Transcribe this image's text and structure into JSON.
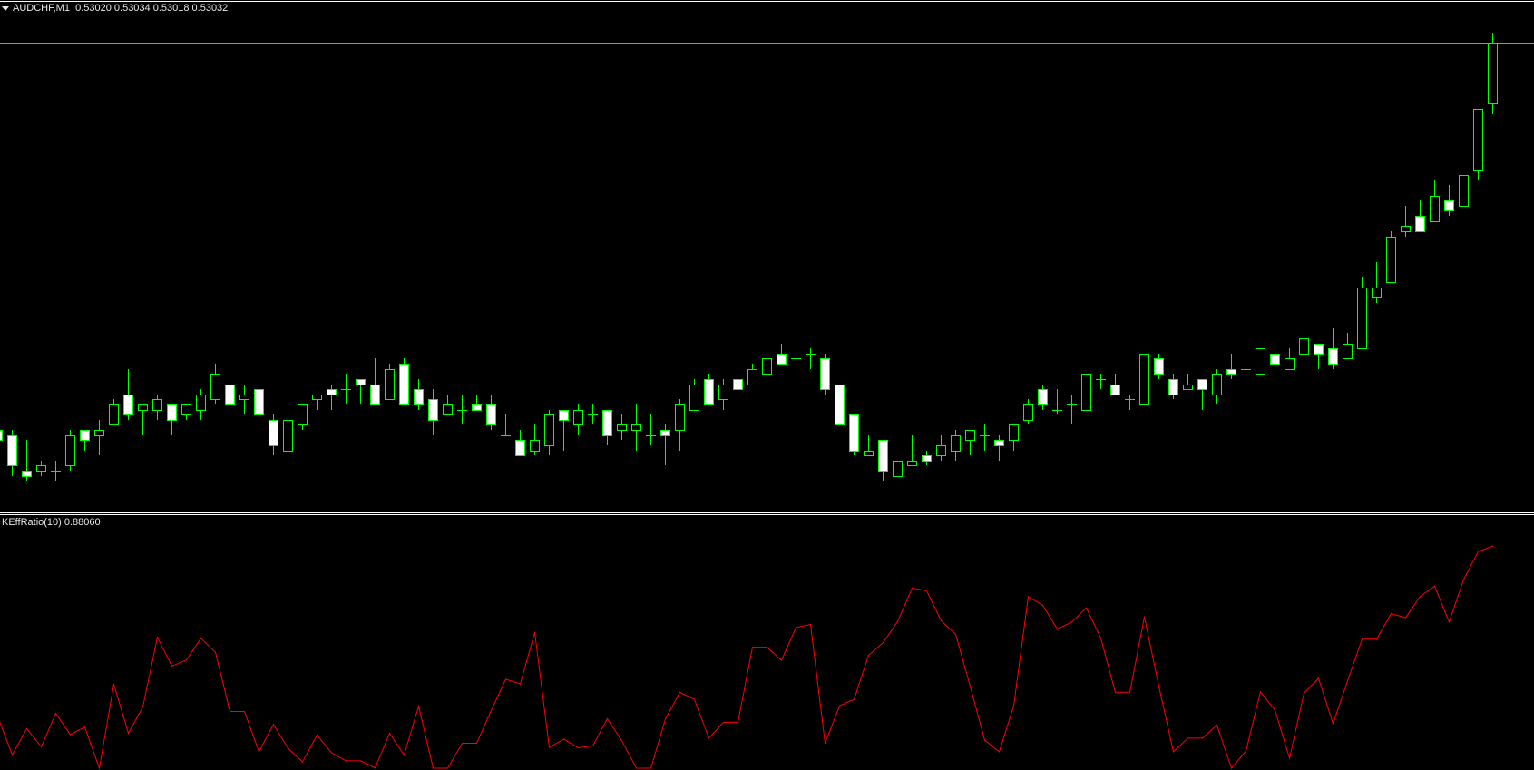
{
  "header": {
    "symbol": "AUDCHF,M1",
    "ohlc_text": "0.53020 0.53034 0.53018 0.53032"
  },
  "indicator": {
    "label": "KEffRatio(10) 0.88060"
  },
  "colors": {
    "background": "#000000",
    "candle_outline": "#00ff00",
    "bear_fill": "#ffffff",
    "bull_fill": "#000000",
    "bid_line": "#8c96a0",
    "indicator_line": "#ff0000",
    "separator": "#ffffff"
  },
  "chart_data": [
    {
      "type": "candlestick",
      "symbol": "AUDCHF",
      "timeframe": "M1",
      "ylim": [
        0.5294,
        0.5304
      ],
      "bid": 0.53032,
      "grid": false,
      "candles_ohlc": [
        [
          0.52956,
          0.52956,
          0.52954,
          0.52954
        ],
        [
          0.52955,
          0.52956,
          0.52947,
          0.52949
        ],
        [
          0.52948,
          0.52954,
          0.52946,
          0.52947
        ],
        [
          0.52948,
          0.5295,
          0.52947,
          0.52949
        ],
        [
          0.52948,
          0.5295,
          0.52946,
          0.52948
        ],
        [
          0.52949,
          0.52956,
          0.52948,
          0.52955
        ],
        [
          0.52956,
          0.52956,
          0.52952,
          0.52954
        ],
        [
          0.52955,
          0.52958,
          0.52951,
          0.52956
        ],
        [
          0.52957,
          0.52962,
          0.52957,
          0.52961
        ],
        [
          0.52963,
          0.52968,
          0.52958,
          0.52959
        ],
        [
          0.5296,
          0.52961,
          0.52955,
          0.52961
        ],
        [
          0.5296,
          0.52963,
          0.52958,
          0.52962
        ],
        [
          0.52961,
          0.52961,
          0.52955,
          0.52958
        ],
        [
          0.52959,
          0.52961,
          0.52958,
          0.52961
        ],
        [
          0.5296,
          0.52964,
          0.52958,
          0.52963
        ],
        [
          0.52962,
          0.52969,
          0.52961,
          0.52967
        ],
        [
          0.52965,
          0.52966,
          0.52961,
          0.52961
        ],
        [
          0.52962,
          0.52965,
          0.52959,
          0.52963
        ],
        [
          0.52964,
          0.52965,
          0.52958,
          0.52959
        ],
        [
          0.52958,
          0.52959,
          0.52951,
          0.52953
        ],
        [
          0.52952,
          0.5296,
          0.52952,
          0.52958
        ],
        [
          0.52957,
          0.52961,
          0.52956,
          0.52961
        ],
        [
          0.52962,
          0.52963,
          0.5296,
          0.52963
        ],
        [
          0.52964,
          0.52965,
          0.5296,
          0.52963
        ],
        [
          0.52964,
          0.52967,
          0.52961,
          0.52964
        ],
        [
          0.52966,
          0.52966,
          0.52961,
          0.52965
        ],
        [
          0.52965,
          0.5297,
          0.52961,
          0.52961
        ],
        [
          0.52962,
          0.52969,
          0.52962,
          0.52968
        ],
        [
          0.52969,
          0.5297,
          0.52961,
          0.52961
        ],
        [
          0.52964,
          0.52966,
          0.5296,
          0.52961
        ],
        [
          0.52962,
          0.52964,
          0.52955,
          0.52958
        ],
        [
          0.52959,
          0.52963,
          0.52959,
          0.52961
        ],
        [
          0.5296,
          0.52963,
          0.52957,
          0.5296
        ],
        [
          0.52961,
          0.52963,
          0.5296,
          0.5296
        ],
        [
          0.52961,
          0.52963,
          0.52956,
          0.52957
        ],
        [
          0.52955,
          0.52959,
          0.52955,
          0.52955
        ],
        [
          0.52954,
          0.52956,
          0.52951,
          0.52951
        ],
        [
          0.52952,
          0.52957,
          0.52951,
          0.52954
        ],
        [
          0.52953,
          0.5296,
          0.52951,
          0.52959
        ],
        [
          0.5296,
          0.5296,
          0.52952,
          0.52958
        ],
        [
          0.52957,
          0.52961,
          0.52955,
          0.5296
        ],
        [
          0.52959,
          0.52961,
          0.52957,
          0.52959
        ],
        [
          0.5296,
          0.5296,
          0.52953,
          0.52955
        ],
        [
          0.52956,
          0.52959,
          0.52954,
          0.52957
        ],
        [
          0.52956,
          0.52961,
          0.52952,
          0.52957
        ],
        [
          0.52955,
          0.52959,
          0.52953,
          0.52955
        ],
        [
          0.52956,
          0.52957,
          0.52949,
          0.52955
        ],
        [
          0.52956,
          0.52962,
          0.52952,
          0.52961
        ],
        [
          0.5296,
          0.52966,
          0.5296,
          0.52965
        ],
        [
          0.52966,
          0.52967,
          0.52961,
          0.52961
        ],
        [
          0.52962,
          0.52966,
          0.5296,
          0.52965
        ],
        [
          0.52966,
          0.52969,
          0.52964,
          0.52964
        ],
        [
          0.52965,
          0.52969,
          0.52965,
          0.52968
        ],
        [
          0.52967,
          0.52971,
          0.52966,
          0.5297
        ],
        [
          0.52971,
          0.52973,
          0.52969,
          0.52969
        ],
        [
          0.5297,
          0.52972,
          0.52969,
          0.5297
        ],
        [
          0.52971,
          0.52972,
          0.52968,
          0.52971
        ],
        [
          0.5297,
          0.52971,
          0.52963,
          0.52964
        ],
        [
          0.52965,
          0.52965,
          0.52957,
          0.52957
        ],
        [
          0.52959,
          0.52959,
          0.52951,
          0.52952
        ],
        [
          0.52951,
          0.52955,
          0.52951,
          0.52952
        ],
        [
          0.52954,
          0.52954,
          0.52946,
          0.52948
        ],
        [
          0.52947,
          0.5295,
          0.52947,
          0.5295
        ],
        [
          0.52949,
          0.52955,
          0.52949,
          0.5295
        ],
        [
          0.52951,
          0.52952,
          0.52949,
          0.5295
        ],
        [
          0.52951,
          0.52955,
          0.5295,
          0.52953
        ],
        [
          0.52952,
          0.52956,
          0.5295,
          0.52955
        ],
        [
          0.52954,
          0.52956,
          0.52951,
          0.52956
        ],
        [
          0.52955,
          0.52957,
          0.52952,
          0.52955
        ],
        [
          0.52954,
          0.52955,
          0.5295,
          0.52953
        ],
        [
          0.52954,
          0.52957,
          0.52952,
          0.52957
        ],
        [
          0.52958,
          0.52962,
          0.52957,
          0.52961
        ],
        [
          0.52964,
          0.52965,
          0.5296,
          0.52961
        ],
        [
          0.5296,
          0.52964,
          0.52959,
          0.5296
        ],
        [
          0.52961,
          0.52963,
          0.52957,
          0.52961
        ],
        [
          0.5296,
          0.52967,
          0.5296,
          0.52967
        ],
        [
          0.52966,
          0.52967,
          0.52964,
          0.52966
        ],
        [
          0.52965,
          0.52967,
          0.52963,
          0.52963
        ],
        [
          0.52962,
          0.52963,
          0.5296,
          0.52962
        ],
        [
          0.52961,
          0.52971,
          0.52961,
          0.52971
        ],
        [
          0.5297,
          0.52971,
          0.52966,
          0.52967
        ],
        [
          0.52966,
          0.52967,
          0.52962,
          0.52963
        ],
        [
          0.52964,
          0.52967,
          0.52964,
          0.52965
        ],
        [
          0.52966,
          0.52966,
          0.5296,
          0.52964
        ],
        [
          0.52963,
          0.52968,
          0.52961,
          0.52967
        ],
        [
          0.52968,
          0.52971,
          0.52966,
          0.52967
        ],
        [
          0.52968,
          0.52969,
          0.52965,
          0.52968
        ],
        [
          0.52967,
          0.52972,
          0.52967,
          0.52972
        ],
        [
          0.52971,
          0.52972,
          0.52968,
          0.52969
        ],
        [
          0.52968,
          0.52972,
          0.52968,
          0.5297
        ],
        [
          0.52971,
          0.52974,
          0.5297,
          0.52974
        ],
        [
          0.52973,
          0.52973,
          0.52968,
          0.52971
        ],
        [
          0.52972,
          0.52976,
          0.52968,
          0.52969
        ],
        [
          0.5297,
          0.52975,
          0.5297,
          0.52973
        ],
        [
          0.52972,
          0.52986,
          0.52972,
          0.52984
        ],
        [
          0.52982,
          0.52989,
          0.52981,
          0.52984
        ],
        [
          0.52985,
          0.52995,
          0.52985,
          0.52994
        ],
        [
          0.52995,
          0.53,
          0.52994,
          0.52996
        ],
        [
          0.52998,
          0.53001,
          0.52995,
          0.52995
        ],
        [
          0.52997,
          0.53005,
          0.52997,
          0.53002
        ],
        [
          0.53001,
          0.53004,
          0.52998,
          0.52999
        ],
        [
          0.53,
          0.53006,
          0.53,
          0.53006
        ],
        [
          0.53007,
          0.53019,
          0.53005,
          0.53019
        ],
        [
          0.5302,
          0.53034,
          0.53018,
          0.53032
        ]
      ]
    },
    {
      "type": "line",
      "ylim": [
        0,
        1
      ],
      "grid": false,
      "values": [
        0.205,
        0.053,
        0.157,
        0.085,
        0.217,
        0.133,
        0.163,
        0.0,
        0.333,
        0.139,
        0.243,
        0.519,
        0.405,
        0.429,
        0.515,
        0.46,
        0.225,
        0.225,
        0.065,
        0.174,
        0.079,
        0.025,
        0.131,
        0.061,
        0.029,
        0.029,
        0.001,
        0.138,
        0.052,
        0.246,
        0.0,
        0.0,
        0.099,
        0.099,
        0.229,
        0.353,
        0.334,
        0.538,
        0.083,
        0.115,
        0.081,
        0.089,
        0.196,
        0.109,
        0.0,
        0.0,
        0.195,
        0.301,
        0.273,
        0.119,
        0.182,
        0.182,
        0.48,
        0.48,
        0.428,
        0.558,
        0.57,
        0.099,
        0.247,
        0.273,
        0.448,
        0.498,
        0.582,
        0.714,
        0.704,
        0.585,
        0.531,
        0.325,
        0.111,
        0.065,
        0.247,
        0.68,
        0.646,
        0.552,
        0.579,
        0.636,
        0.516,
        0.301,
        0.301,
        0.6,
        0.325,
        0.065,
        0.119,
        0.119,
        0.171,
        0.0,
        0.068,
        0.303,
        0.23,
        0.04,
        0.298,
        0.356,
        0.177,
        0.346,
        0.512,
        0.512,
        0.613,
        0.597,
        0.681,
        0.722,
        0.58,
        0.749,
        0.859,
        0.8806
      ]
    }
  ]
}
